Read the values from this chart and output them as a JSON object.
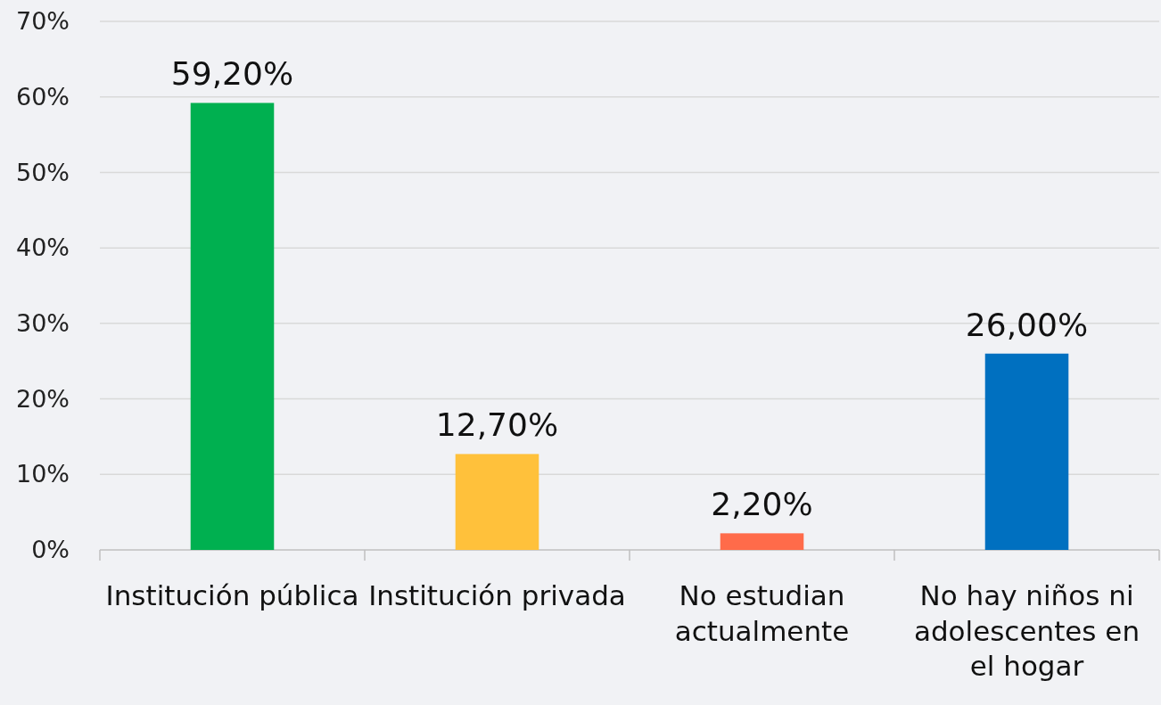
{
  "chart_data": {
    "type": "bar",
    "categories": [
      "Institución pública",
      "Institución privada",
      "No estudian actualmente",
      "No hay niños ni adolescentes en el hogar"
    ],
    "values": [
      59.2,
      12.7,
      2.2,
      26.0
    ],
    "colors": [
      "#00b050",
      "#ffc13b",
      "#ff6b4a",
      "#0070c0"
    ],
    "value_labels": [
      "59,20%",
      "12,70%",
      "2,20%",
      "26,00%"
    ],
    "ylim": [
      0,
      70
    ],
    "yticks": [
      {
        "value": 0,
        "label": "0%"
      },
      {
        "value": 10,
        "label": "10%"
      },
      {
        "value": 20,
        "label": "20%"
      },
      {
        "value": 30,
        "label": "30%"
      },
      {
        "value": 40,
        "label": "40%"
      },
      {
        "value": 50,
        "label": "50%"
      },
      {
        "value": 60,
        "label": "60%"
      },
      {
        "value": 70,
        "label": "70%"
      }
    ],
    "grid": "y"
  }
}
